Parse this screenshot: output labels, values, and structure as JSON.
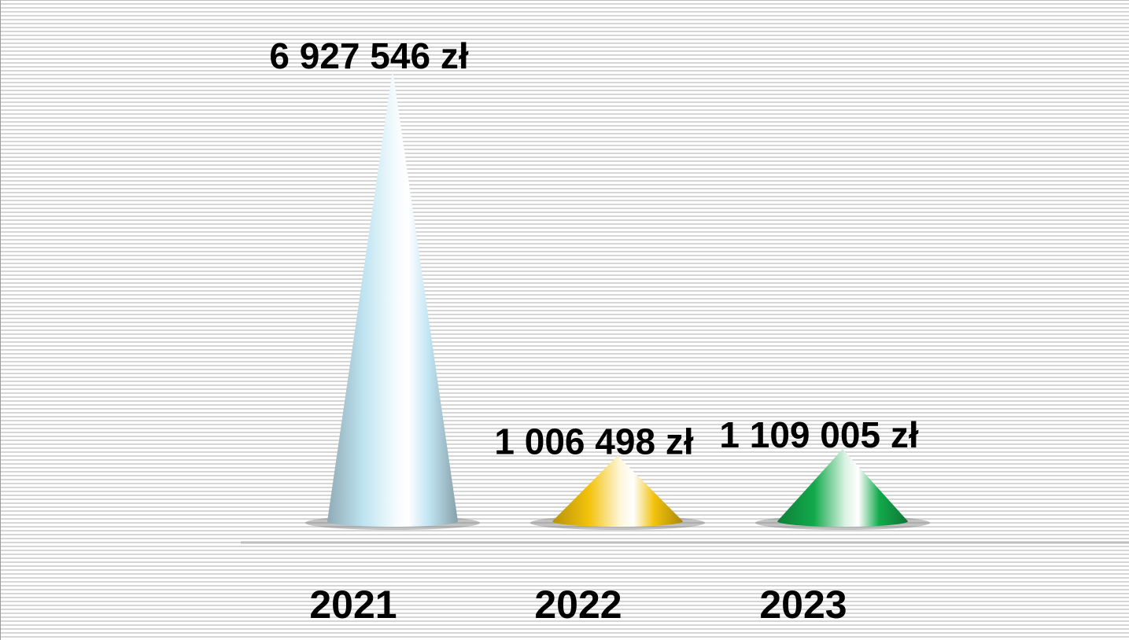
{
  "chart_data": {
    "type": "bar",
    "shape": "cone",
    "categories": [
      "2021",
      "2022",
      "2023"
    ],
    "values": [
      6927546,
      1006498,
      1109005
    ],
    "value_labels": [
      "6 927 546 zł",
      "1 006 498 zł",
      "1 109 005 zł"
    ],
    "colors": [
      "#bfe4f2",
      "#f3c20c",
      "#12a94b"
    ],
    "title": "",
    "xlabel": "",
    "ylabel": "",
    "ylim": [
      0,
      6927546
    ],
    "grid": true,
    "legend": "none"
  }
}
